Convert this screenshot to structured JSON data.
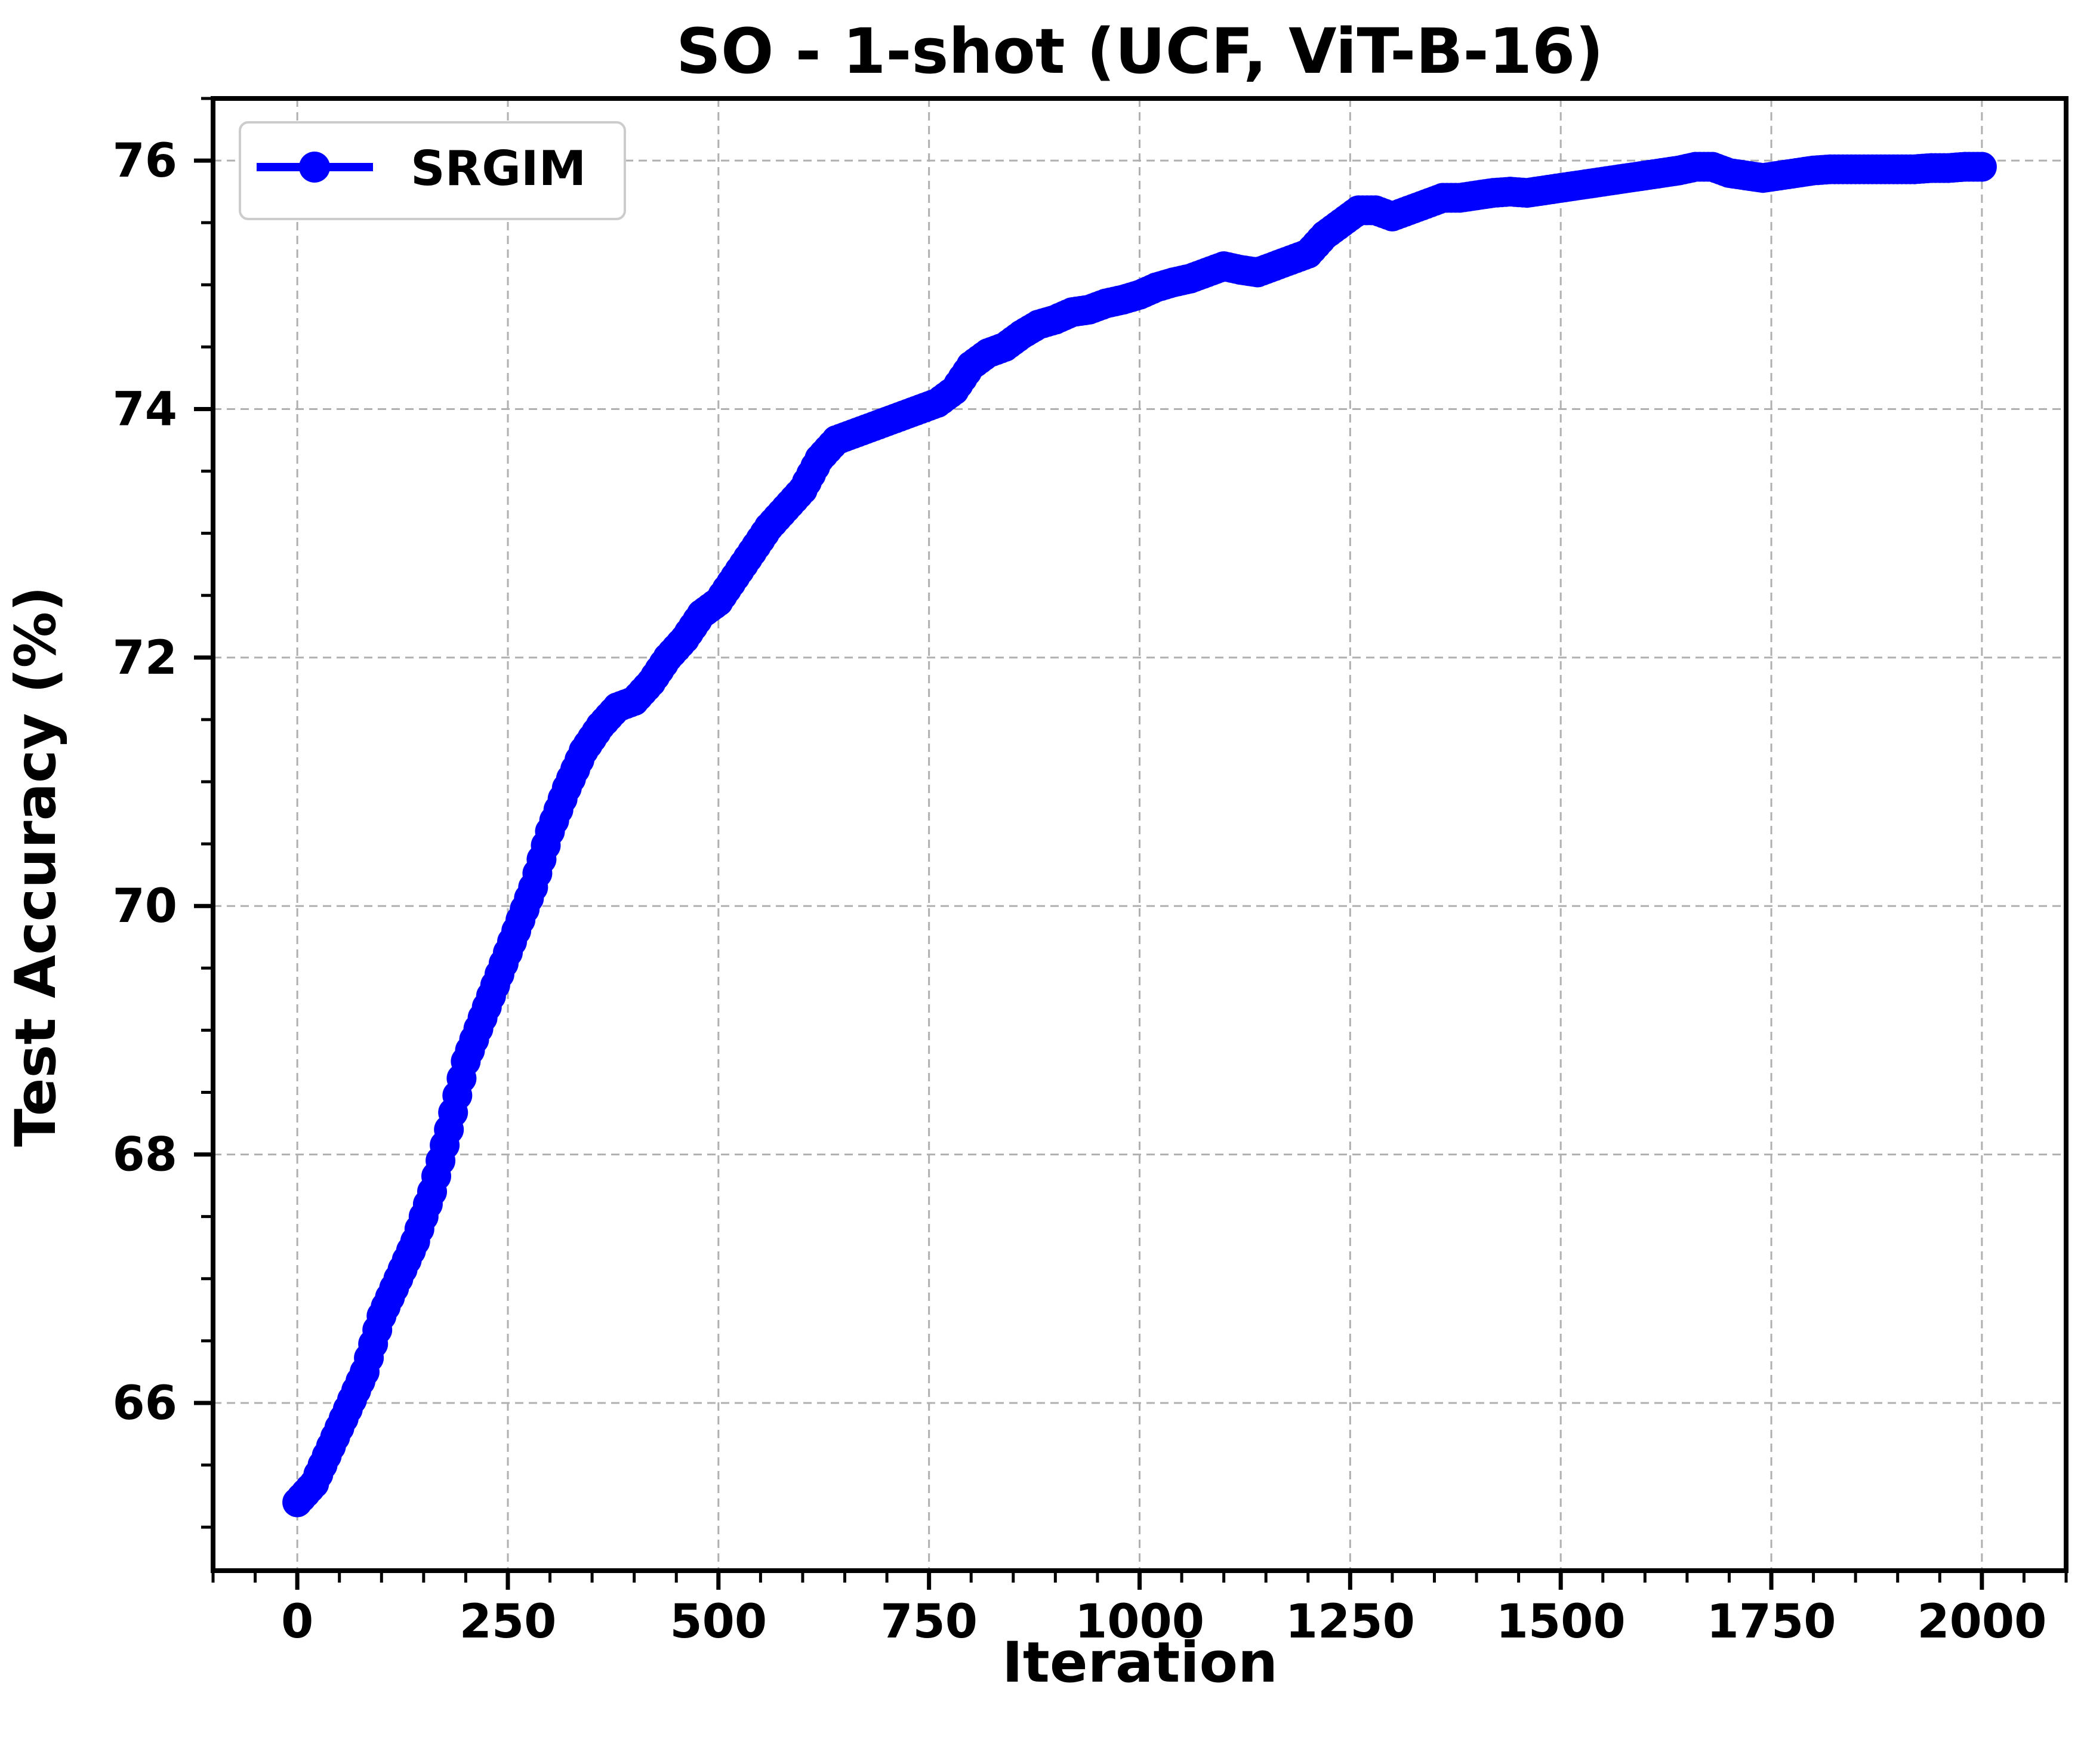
{
  "chart_data": {
    "type": "line",
    "title": "SO - 1-shot (UCF, ViT-B-16)",
    "xlabel": "Iteration",
    "ylabel": "Test Accuracy (%)",
    "xlim": [
      -100,
      2100
    ],
    "ylim": [
      64.65,
      76.5
    ],
    "xticks": [
      0,
      250,
      500,
      750,
      1000,
      1250,
      1500,
      1750,
      2000
    ],
    "xtick_labels": [
      "0",
      "250",
      "500",
      "750",
      "1000",
      "1250",
      "1500",
      "1750",
      "2000"
    ],
    "yticks": [
      66,
      68,
      70,
      72,
      74,
      76
    ],
    "ytick_labels": [
      "66",
      "68",
      "70",
      "72",
      "74",
      "76"
    ],
    "x_minor_step": 50,
    "y_minor_step": 0.5,
    "grid": true,
    "legend_position": "top-left",
    "colors": {
      "series": "#0000ff",
      "grid": "#b0b0b0",
      "axes": "#000000"
    },
    "series": [
      {
        "name": "SRGIM",
        "marker": "circle",
        "knots": [
          [
            0,
            65.2
          ],
          [
            20,
            65.35
          ],
          [
            40,
            65.65
          ],
          [
            60,
            65.95
          ],
          [
            80,
            66.25
          ],
          [
            100,
            66.7
          ],
          [
            120,
            67.0
          ],
          [
            140,
            67.3
          ],
          [
            160,
            67.7
          ],
          [
            180,
            68.2
          ],
          [
            200,
            68.75
          ],
          [
            220,
            69.1
          ],
          [
            240,
            69.45
          ],
          [
            260,
            69.8
          ],
          [
            280,
            70.15
          ],
          [
            300,
            70.6
          ],
          [
            320,
            70.95
          ],
          [
            340,
            71.25
          ],
          [
            360,
            71.45
          ],
          [
            380,
            71.6
          ],
          [
            400,
            71.65
          ],
          [
            420,
            71.8
          ],
          [
            440,
            72.0
          ],
          [
            460,
            72.15
          ],
          [
            480,
            72.35
          ],
          [
            500,
            72.45
          ],
          [
            520,
            72.65
          ],
          [
            540,
            72.85
          ],
          [
            560,
            73.05
          ],
          [
            580,
            73.2
          ],
          [
            600,
            73.35
          ],
          [
            620,
            73.6
          ],
          [
            640,
            73.75
          ],
          [
            660,
            73.8
          ],
          [
            680,
            73.85
          ],
          [
            700,
            73.9
          ],
          [
            720,
            73.95
          ],
          [
            740,
            74.0
          ],
          [
            760,
            74.05
          ],
          [
            780,
            74.15
          ],
          [
            800,
            74.35
          ],
          [
            820,
            74.45
          ],
          [
            840,
            74.5
          ],
          [
            860,
            74.6
          ],
          [
            880,
            74.68
          ],
          [
            900,
            74.72
          ],
          [
            920,
            74.78
          ],
          [
            940,
            74.8
          ],
          [
            960,
            74.85
          ],
          [
            980,
            74.88
          ],
          [
            1000,
            74.92
          ],
          [
            1020,
            74.98
          ],
          [
            1040,
            75.02
          ],
          [
            1060,
            75.05
          ],
          [
            1080,
            75.1
          ],
          [
            1100,
            75.15
          ],
          [
            1120,
            75.12
          ],
          [
            1140,
            75.1
          ],
          [
            1160,
            75.15
          ],
          [
            1180,
            75.2
          ],
          [
            1200,
            75.25
          ],
          [
            1220,
            75.4
          ],
          [
            1240,
            75.5
          ],
          [
            1260,
            75.6
          ],
          [
            1280,
            75.6
          ],
          [
            1300,
            75.55
          ],
          [
            1320,
            75.6
          ],
          [
            1340,
            75.65
          ],
          [
            1360,
            75.7
          ],
          [
            1380,
            75.7
          ],
          [
            1400,
            75.72
          ],
          [
            1420,
            75.74
          ],
          [
            1440,
            75.75
          ],
          [
            1460,
            75.74
          ],
          [
            1480,
            75.76
          ],
          [
            1500,
            75.78
          ],
          [
            1520,
            75.8
          ],
          [
            1540,
            75.82
          ],
          [
            1560,
            75.84
          ],
          [
            1580,
            75.86
          ],
          [
            1600,
            75.88
          ],
          [
            1620,
            75.9
          ],
          [
            1640,
            75.92
          ],
          [
            1660,
            75.95
          ],
          [
            1680,
            75.95
          ],
          [
            1700,
            75.9
          ],
          [
            1720,
            75.88
          ],
          [
            1740,
            75.86
          ],
          [
            1760,
            75.88
          ],
          [
            1780,
            75.9
          ],
          [
            1800,
            75.92
          ],
          [
            1820,
            75.93
          ],
          [
            1840,
            75.93
          ],
          [
            1860,
            75.93
          ],
          [
            1880,
            75.93
          ],
          [
            1900,
            75.93
          ],
          [
            1920,
            75.93
          ],
          [
            1940,
            75.94
          ],
          [
            1960,
            75.94
          ],
          [
            1980,
            75.95
          ],
          [
            2000,
            75.95
          ]
        ]
      }
    ]
  }
}
